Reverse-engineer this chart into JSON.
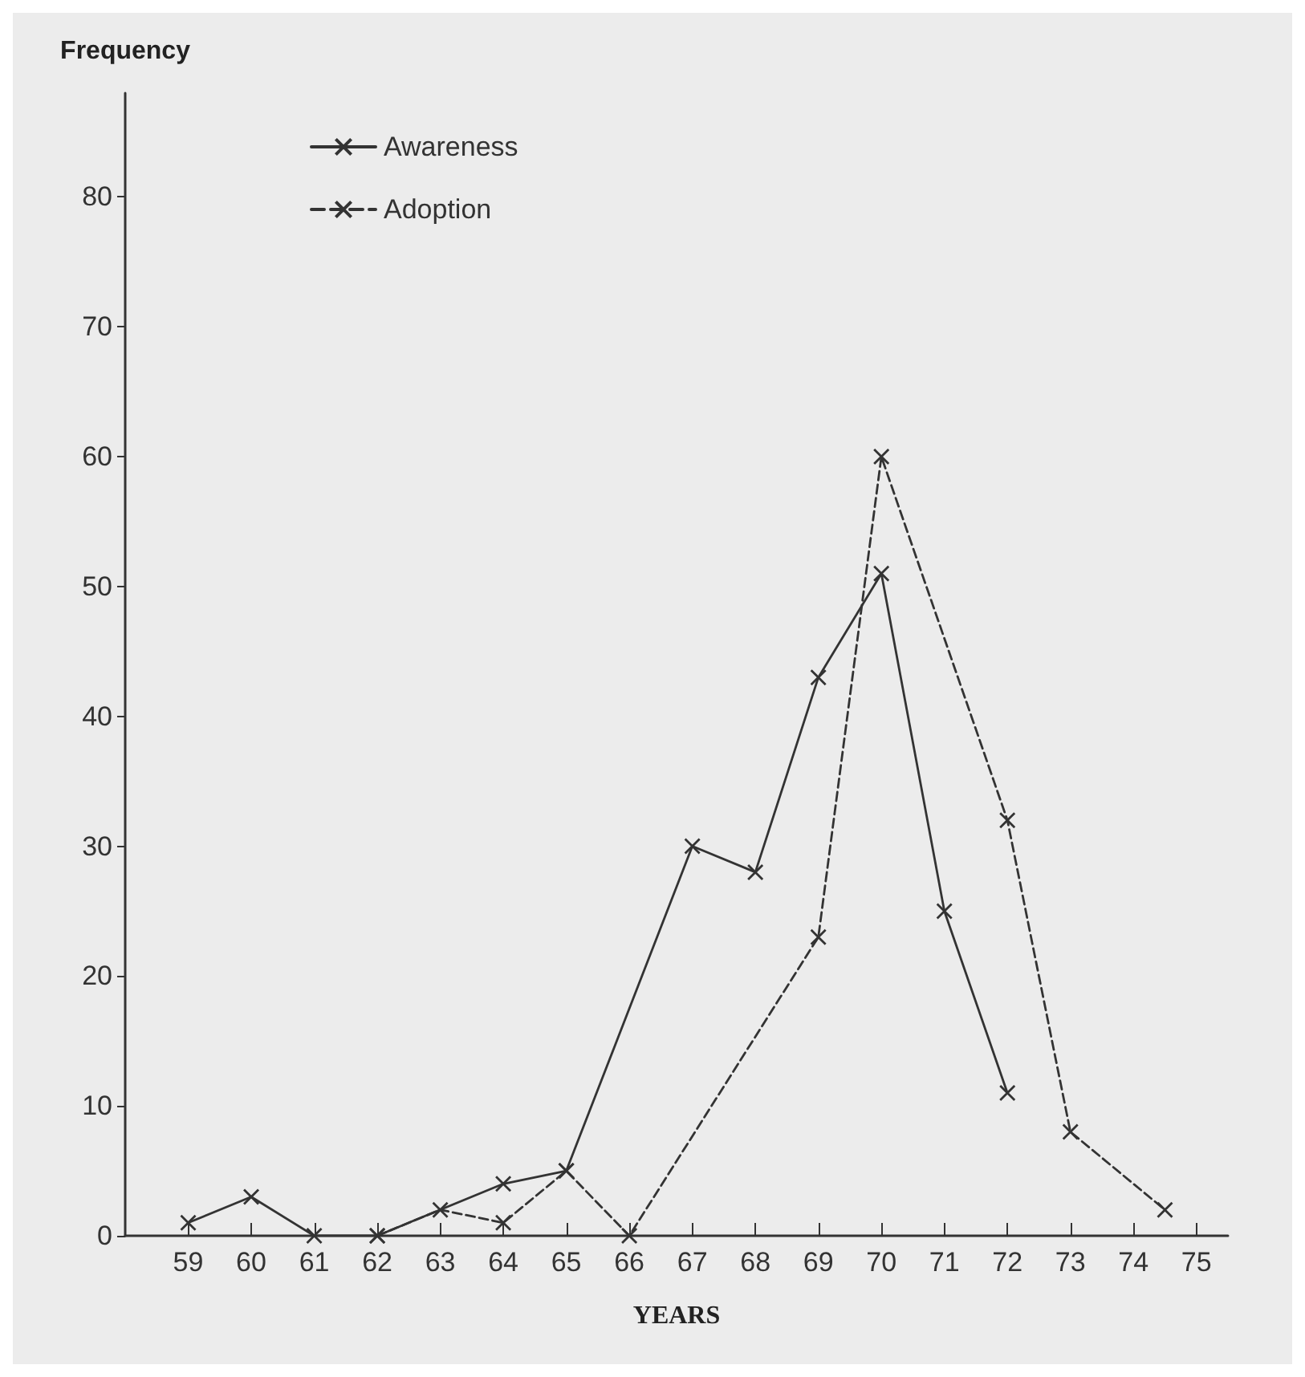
{
  "chart_data": {
    "type": "line",
    "xlabel": "YEARS",
    "ylabel": "Frequency",
    "xlim": [
      58,
      75.5
    ],
    "xticks": [
      59,
      60,
      61,
      62,
      63,
      64,
      65,
      66,
      67,
      68,
      69,
      70,
      71,
      72,
      73,
      74,
      75
    ],
    "ylim": [
      0,
      88
    ],
    "yticks": [
      0,
      10,
      20,
      30,
      40,
      50,
      60,
      70,
      80
    ],
    "grid": false,
    "legend": "top left",
    "marker": "cross",
    "series": [
      {
        "name": "Awareness",
        "color": "#333333",
        "line_style": "solid",
        "x": [
          59,
          60,
          61,
          62,
          64,
          65,
          67,
          68,
          69,
          70,
          71,
          72
        ],
        "values": [
          1,
          3,
          0,
          0,
          4,
          5,
          30,
          28,
          43,
          51,
          25,
          11
        ]
      },
      {
        "name": "Adoption",
        "color": "#333333",
        "line_style": "dashed",
        "x": [
          62,
          63,
          64,
          65,
          66,
          69,
          70,
          72,
          73,
          74.5
        ],
        "values": [
          0,
          2,
          1,
          5,
          0,
          23,
          60,
          32,
          8,
          2
        ]
      }
    ]
  }
}
